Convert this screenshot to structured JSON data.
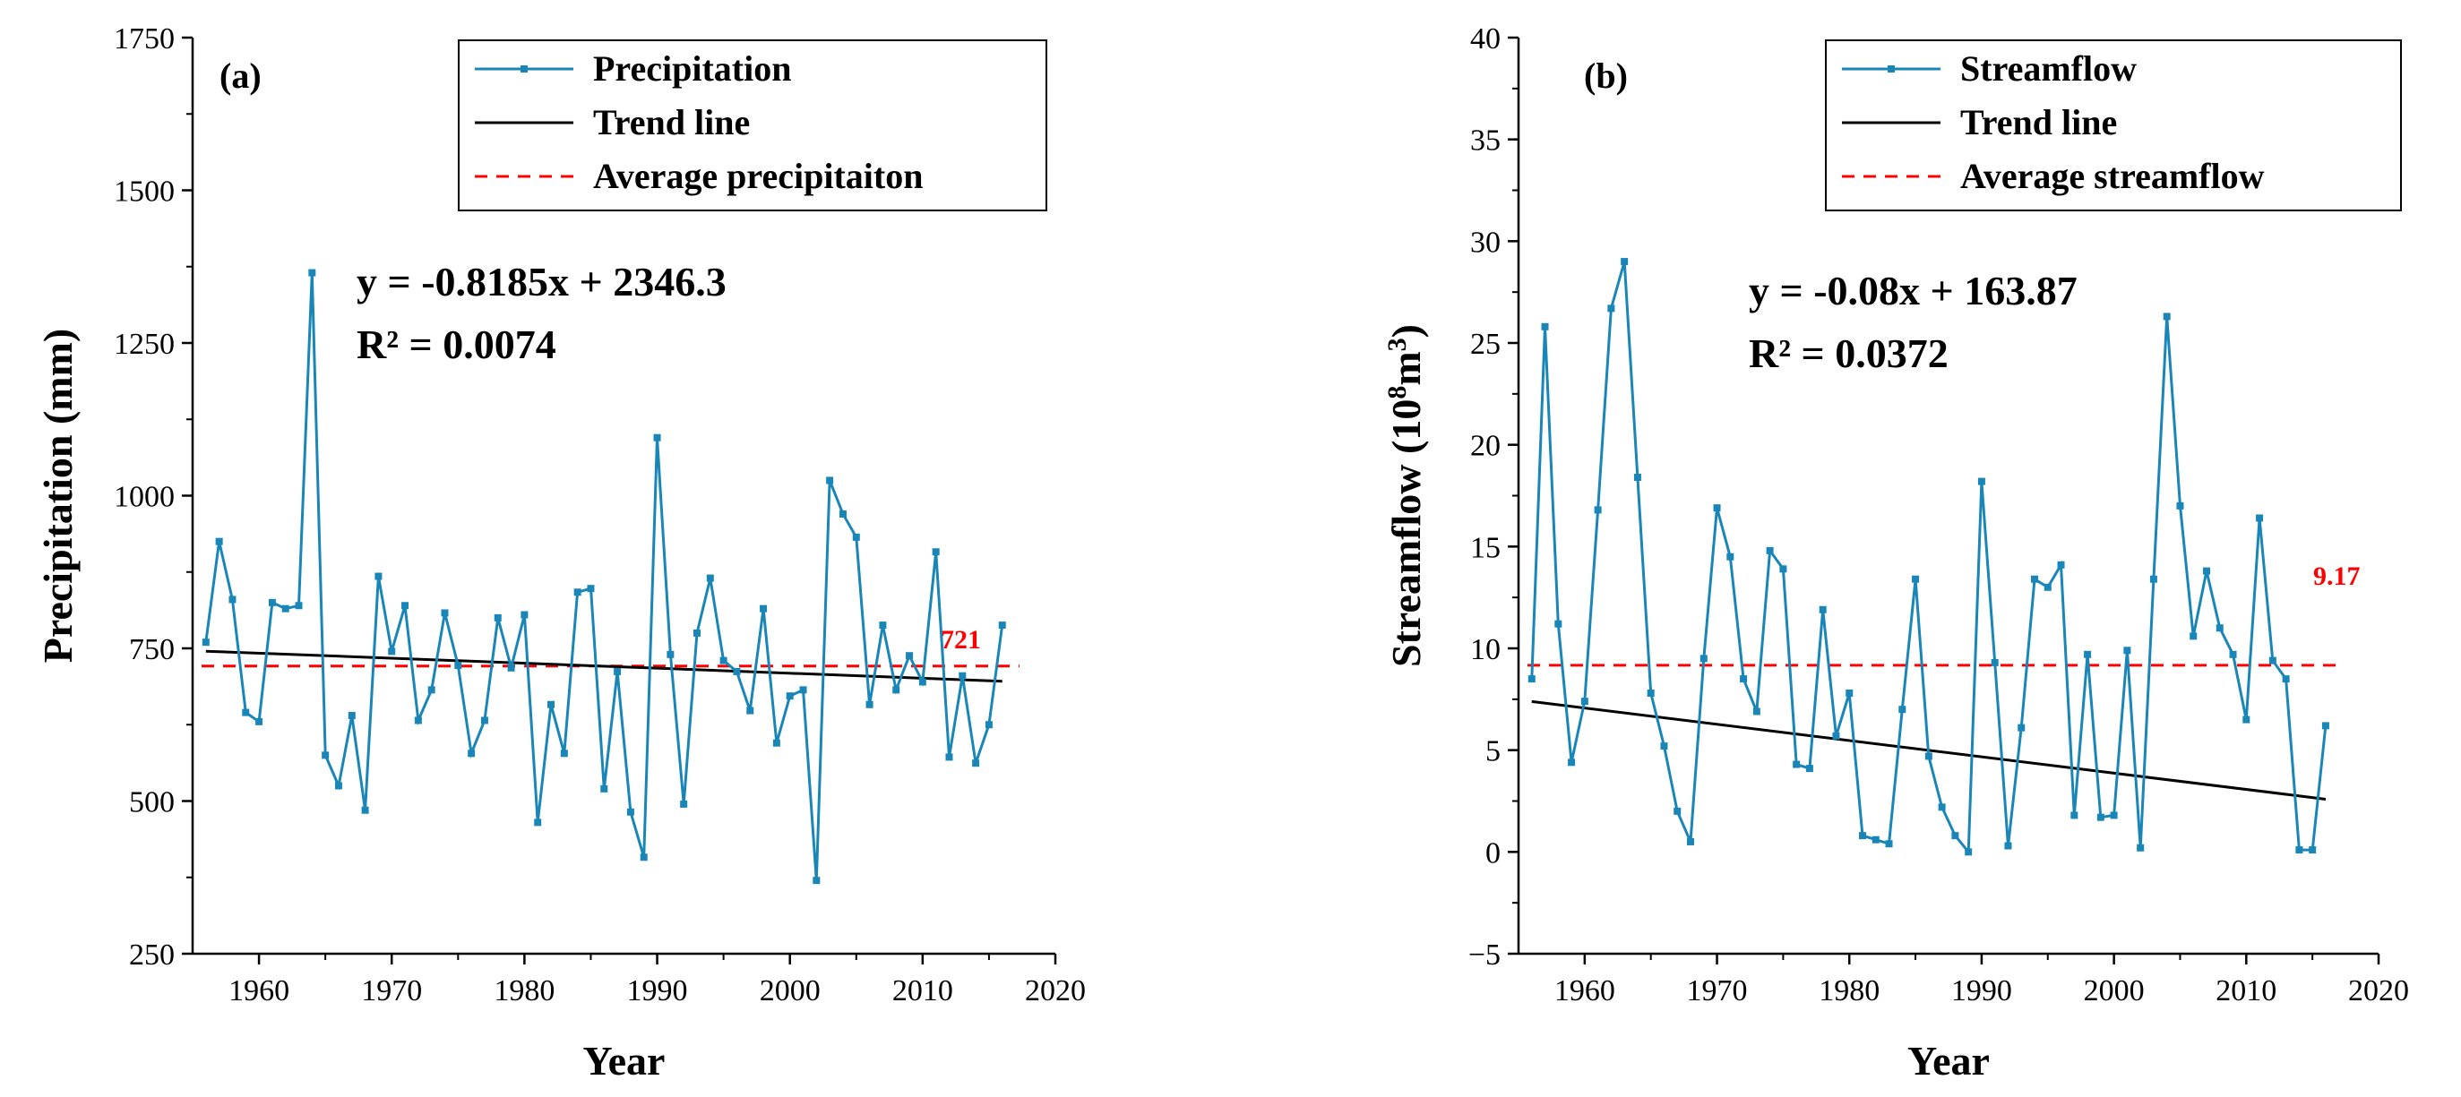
{
  "colors": {
    "series": "#1a86b8",
    "trend": "#000000",
    "average": "#ff0000"
  },
  "chart_data": [
    {
      "type": "line",
      "panel": "(a)",
      "xlabel": "Year",
      "ylabel": "Precipitation (mm)",
      "xlim": [
        1955,
        2020
      ],
      "ylim": [
        250,
        1750
      ],
      "xticks": [
        1960,
        1970,
        1980,
        1990,
        2000,
        2010,
        2020
      ],
      "yticks": [
        250,
        500,
        750,
        1000,
        1250,
        1500,
        1750
      ],
      "x": [
        1956,
        1957,
        1958,
        1959,
        1960,
        1961,
        1962,
        1963,
        1964,
        1965,
        1966,
        1967,
        1968,
        1969,
        1970,
        1971,
        1972,
        1973,
        1974,
        1975,
        1976,
        1977,
        1978,
        1979,
        1980,
        1981,
        1982,
        1983,
        1984,
        1985,
        1986,
        1987,
        1988,
        1989,
        1990,
        1991,
        1992,
        1993,
        1994,
        1995,
        1996,
        1997,
        1998,
        1999,
        2000,
        2001,
        2002,
        2003,
        2004,
        2005,
        2006,
        2007,
        2008,
        2009,
        2010,
        2011,
        2012,
        2013,
        2014,
        2015,
        2016
      ],
      "series": [
        {
          "name": "Precipitation",
          "values": [
            760,
            925,
            830,
            645,
            630,
            825,
            815,
            820,
            1365,
            575,
            525,
            640,
            485,
            868,
            745,
            820,
            632,
            682,
            808,
            722,
            578,
            632,
            800,
            718,
            805,
            465,
            658,
            578,
            842,
            848,
            520,
            712,
            482,
            408,
            1095,
            740,
            495,
            775,
            865,
            730,
            712,
            648,
            815,
            595,
            672,
            682,
            370,
            1025,
            970,
            932,
            658,
            788,
            682,
            738,
            695,
            908,
            572,
            705,
            562,
            625,
            788
          ]
        }
      ],
      "trend": {
        "label": "Trend line",
        "slope": -0.8185,
        "intercept": 2346.3
      },
      "average": {
        "label": "Average precipitaiton",
        "value": 721,
        "text": "721"
      },
      "legend": [
        "Precipitation",
        "Trend line",
        "Average precipitaiton"
      ],
      "equation": "y = -0.8185x + 2346.3",
      "r_squared": "R² = 0.0074"
    },
    {
      "type": "line",
      "panel": "(b)",
      "xlabel": "Year",
      "ylabel_main": "Streamflow (10",
      "ylabel_sup1": "8",
      "ylabel_mid": "m",
      "ylabel_sup2": "3",
      "ylabel_end": ")",
      "xlim": [
        1955,
        2020
      ],
      "ylim": [
        -5,
        40
      ],
      "xticks": [
        1960,
        1970,
        1980,
        1990,
        2000,
        2010,
        2020
      ],
      "yticks": [
        -5,
        0,
        5,
        10,
        15,
        20,
        25,
        30,
        35,
        40
      ],
      "x": [
        1956,
        1957,
        1958,
        1959,
        1960,
        1961,
        1962,
        1963,
        1964,
        1965,
        1966,
        1967,
        1968,
        1969,
        1970,
        1971,
        1972,
        1973,
        1974,
        1975,
        1976,
        1977,
        1978,
        1979,
        1980,
        1981,
        1982,
        1983,
        1984,
        1985,
        1986,
        1987,
        1988,
        1989,
        1990,
        1991,
        1992,
        1993,
        1994,
        1995,
        1996,
        1997,
        1998,
        1999,
        2000,
        2001,
        2002,
        2003,
        2004,
        2005,
        2006,
        2007,
        2008,
        2009,
        2010,
        2011,
        2012,
        2013,
        2014,
        2015,
        2016
      ],
      "series": [
        {
          "name": "Streamflow",
          "values": [
            8.5,
            25.8,
            11.2,
            4.4,
            7.4,
            16.8,
            26.7,
            29.0,
            18.4,
            7.8,
            5.2,
            2.0,
            0.5,
            9.5,
            16.9,
            14.5,
            8.5,
            6.9,
            14.8,
            13.9,
            4.3,
            4.1,
            11.9,
            5.7,
            7.8,
            0.8,
            0.6,
            0.4,
            7.0,
            13.4,
            4.7,
            2.2,
            0.8,
            0.0,
            18.2,
            9.3,
            0.3,
            6.1,
            13.4,
            13.0,
            14.1,
            1.8,
            9.7,
            1.7,
            1.8,
            9.9,
            0.2,
            13.4,
            26.3,
            17.0,
            10.6,
            13.8,
            11.0,
            9.7,
            6.5,
            16.4,
            9.4,
            8.5,
            0.1,
            0.1,
            6.2
          ]
        }
      ],
      "trend": {
        "label": "Trend line",
        "slope": -0.08,
        "intercept": 163.87
      },
      "average": {
        "label": "Average streamflow",
        "value": 9.17,
        "text": "9.17"
      },
      "legend": [
        "Streamflow",
        "Trend line",
        "Average streamflow"
      ],
      "equation": "y = -0.08x + 163.87",
      "r_squared": "R² = 0.0372"
    }
  ]
}
